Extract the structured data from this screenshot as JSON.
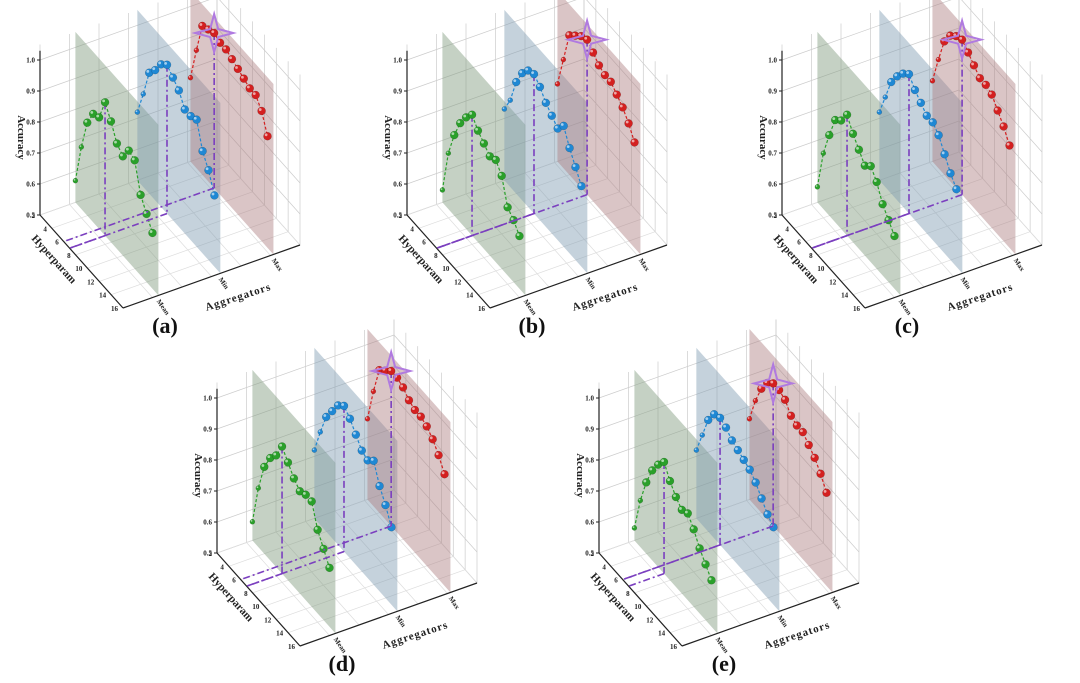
{
  "colors": {
    "mean": "#2aa02a",
    "min": "#1f88d4",
    "max": "#d42020",
    "highlight": "#7b3fbf",
    "plane_mean": "#7f9a7c",
    "plane_min": "#7f9bb2",
    "plane_max": "#ad7f80"
  },
  "chart_data": [
    {
      "panel": "(a)",
      "type": "scatter3d",
      "ylabel": "Accuracy",
      "xlabel": "Aggregators",
      "zlabel": "Hyperparam",
      "categories": [
        "Mean",
        "Min",
        "Max"
      ],
      "z_ticks": [
        2,
        4,
        6,
        8,
        10,
        12,
        14,
        16
      ],
      "y_ticks": [
        0.5,
        0.6,
        0.7,
        0.8,
        0.9,
        1.0
      ],
      "ylim": [
        0.5,
        1.0
      ],
      "grid": true,
      "z": [
        2,
        3,
        4,
        5,
        6,
        7,
        8,
        9,
        10,
        11,
        12,
        13,
        14,
        15
      ],
      "series": [
        {
          "category": "Mean",
          "values": [
            0.57,
            0.7,
            0.8,
            0.85,
            0.86,
            0.93,
            0.89,
            0.84,
            0.82,
            0.86,
            0.85,
            0.76,
            0.72,
            0.68
          ]
        },
        {
          "category": "Min",
          "values": [
            0.72,
            0.8,
            0.89,
            0.92,
            0.96,
            0.98,
            0.96,
            0.94,
            0.9,
            0.9,
            0.91,
            0.83,
            0.79,
            0.73
          ]
        },
        {
          "category": "Max",
          "values": [
            0.77,
            0.88,
            0.98,
            0.99,
            1.0,
            0.99,
            0.99,
            0.98,
            0.97,
            0.96,
            0.95,
            0.95,
            0.92,
            0.86
          ]
        }
      ]
    },
    {
      "panel": "(b)",
      "type": "scatter3d",
      "ylabel": "Accuracy",
      "xlabel": "Aggregators",
      "zlabel": "Hyperparam",
      "categories": [
        "Mean",
        "Min",
        "Max"
      ],
      "z_ticks": [
        2,
        4,
        6,
        8,
        10,
        12,
        14,
        16
      ],
      "y_ticks": [
        0.5,
        0.6,
        0.7,
        0.8,
        0.9,
        1.0
      ],
      "ylim": [
        0.5,
        1.0
      ],
      "grid": true,
      "z": [
        2,
        3,
        4,
        5,
        6,
        7,
        8,
        9,
        10,
        11,
        12,
        13,
        14,
        15
      ],
      "series": [
        {
          "category": "Mean",
          "values": [
            0.54,
            0.68,
            0.76,
            0.82,
            0.86,
            0.89,
            0.86,
            0.84,
            0.82,
            0.83,
            0.8,
            0.72,
            0.7,
            0.67
          ]
        },
        {
          "category": "Min",
          "values": [
            0.73,
            0.78,
            0.86,
            0.91,
            0.94,
            0.95,
            0.93,
            0.9,
            0.88,
            0.86,
            0.89,
            0.84,
            0.8,
            0.76
          ]
        },
        {
          "category": "Max",
          "values": [
            0.75,
            0.85,
            0.95,
            0.97,
            0.99,
            1.0,
            0.98,
            0.96,
            0.95,
            0.95,
            0.93,
            0.91,
            0.88,
            0.84
          ]
        }
      ]
    },
    {
      "panel": "(c)",
      "type": "scatter3d",
      "ylabel": "Accuracy",
      "xlabel": "Aggregators",
      "zlabel": "Hyperparam",
      "categories": [
        "Mean",
        "Min",
        "Max"
      ],
      "z_ticks": [
        2,
        4,
        6,
        8,
        10,
        12,
        14,
        16
      ],
      "y_ticks": [
        0.5,
        0.6,
        0.7,
        0.8,
        0.9,
        1.0
      ],
      "ylim": [
        0.5,
        1.0
      ],
      "grid": true,
      "z": [
        2,
        3,
        4,
        5,
        6,
        7,
        8,
        9,
        10,
        11,
        12,
        13,
        14,
        15
      ],
      "series": [
        {
          "category": "Mean",
          "values": [
            0.55,
            0.68,
            0.76,
            0.83,
            0.85,
            0.89,
            0.85,
            0.82,
            0.79,
            0.81,
            0.78,
            0.73,
            0.7,
            0.67
          ]
        },
        {
          "category": "Min",
          "values": [
            0.72,
            0.79,
            0.86,
            0.9,
            0.93,
            0.95,
            0.92,
            0.9,
            0.88,
            0.88,
            0.86,
            0.82,
            0.78,
            0.75
          ]
        },
        {
          "category": "Max",
          "values": [
            0.76,
            0.85,
            0.93,
            0.97,
            0.99,
            1.0,
            0.98,
            0.96,
            0.94,
            0.94,
            0.93,
            0.9,
            0.87,
            0.83
          ]
        }
      ]
    },
    {
      "panel": "(d)",
      "type": "scatter3d",
      "ylabel": "Accuracy",
      "xlabel": "Aggregators",
      "zlabel": "Hyperparam",
      "categories": [
        "Mean",
        "Min",
        "Max"
      ],
      "z_ticks": [
        2,
        4,
        6,
        8,
        10,
        12,
        14,
        16
      ],
      "y_ticks": [
        0.5,
        0.6,
        0.7,
        0.8,
        0.9,
        1.0
      ],
      "ylim": [
        0.5,
        1.0
      ],
      "grid": true,
      "z": [
        2,
        3,
        4,
        5,
        6,
        7,
        8,
        9,
        10,
        11,
        12,
        13,
        14,
        15
      ],
      "series": [
        {
          "category": "Mean",
          "values": [
            0.56,
            0.69,
            0.78,
            0.83,
            0.86,
            0.91,
            0.88,
            0.85,
            0.83,
            0.84,
            0.84,
            0.77,
            0.73,
            0.69
          ]
        },
        {
          "category": "Min",
          "values": [
            0.72,
            0.8,
            0.87,
            0.91,
            0.95,
            0.97,
            0.95,
            0.92,
            0.89,
            0.88,
            0.9,
            0.84,
            0.8,
            0.75
          ]
        },
        {
          "category": "Max",
          "values": [
            0.76,
            0.87,
            0.96,
            0.98,
            1.0,
            1.0,
            0.99,
            0.97,
            0.96,
            0.96,
            0.95,
            0.93,
            0.9,
            0.86
          ]
        }
      ]
    },
    {
      "panel": "(e)",
      "type": "scatter3d",
      "ylabel": "Accuracy",
      "xlabel": "Aggregators",
      "zlabel": "Hyperparam",
      "categories": [
        "Mean",
        "Min",
        "Max"
      ],
      "z_ticks": [
        2,
        4,
        6,
        8,
        10,
        12,
        14,
        16
      ],
      "y_ticks": [
        0.5,
        0.6,
        0.7,
        0.8,
        0.9,
        1.0
      ],
      "ylim": [
        0.5,
        1.0
      ],
      "grid": true,
      "z": [
        2,
        3,
        4,
        5,
        6,
        7,
        8,
        9,
        10,
        11,
        12,
        13,
        14,
        15
      ],
      "series": [
        {
          "category": "Mean",
          "values": [
            0.54,
            0.65,
            0.73,
            0.79,
            0.83,
            0.86,
            0.82,
            0.79,
            0.77,
            0.78,
            0.75,
            0.71,
            0.68,
            0.65
          ]
        },
        {
          "category": "Min",
          "values": [
            0.72,
            0.79,
            0.86,
            0.9,
            0.91,
            0.9,
            0.88,
            0.87,
            0.86,
            0.85,
            0.83,
            0.8,
            0.77,
            0.75
          ]
        },
        {
          "category": "Max",
          "values": [
            0.76,
            0.84,
            0.9,
            0.94,
            0.96,
            0.96,
            0.95,
            0.92,
            0.91,
            0.91,
            0.89,
            0.87,
            0.84,
            0.8
          ]
        }
      ]
    }
  ]
}
